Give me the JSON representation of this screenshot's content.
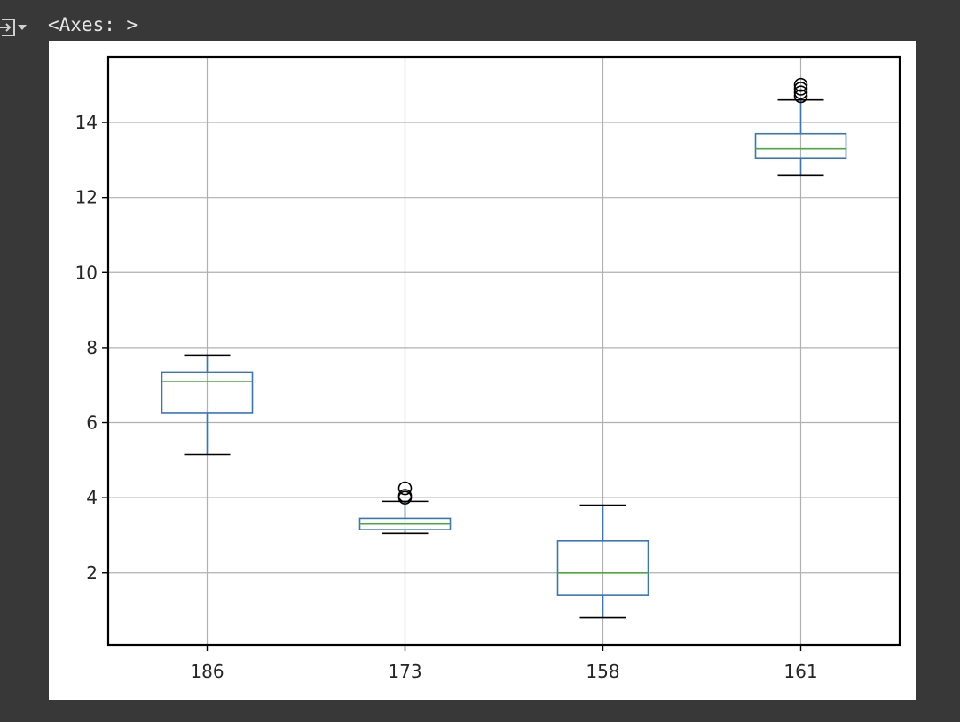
{
  "output": {
    "text": "<Axes: >",
    "icon": "output-expand-icon"
  },
  "chart_data": {
    "type": "box",
    "categories": [
      "186",
      "173",
      "158",
      "161"
    ],
    "series": [
      {
        "category": "186",
        "whisker_low": 5.15,
        "q1": 6.25,
        "median": 7.1,
        "q3": 7.35,
        "whisker_high": 7.8,
        "outliers": []
      },
      {
        "category": "173",
        "whisker_low": 3.05,
        "q1": 3.15,
        "median": 3.3,
        "q3": 3.45,
        "whisker_high": 3.9,
        "outliers": [
          4.0,
          4.05,
          4.25
        ]
      },
      {
        "category": "158",
        "whisker_low": 0.8,
        "q1": 1.4,
        "median": 2.0,
        "q3": 2.85,
        "whisker_high": 3.8,
        "outliers": []
      },
      {
        "category": "161",
        "whisker_low": 12.6,
        "q1": 13.05,
        "median": 13.3,
        "q3": 13.7,
        "whisker_high": 14.6,
        "outliers": [
          14.7,
          14.8,
          14.9,
          15.0
        ]
      }
    ],
    "yticks": [
      2,
      4,
      6,
      8,
      10,
      12,
      14
    ],
    "ylim": [
      0.08,
      15.75
    ],
    "grid": true,
    "title": "",
    "xlabel": "",
    "ylabel": "",
    "colors": {
      "box": "#3a76b7",
      "median": "#4ea63e",
      "whisker_cap": "#000000",
      "outlier": "#000000",
      "grid": "#b0b0b0",
      "axes": "#000000"
    }
  }
}
